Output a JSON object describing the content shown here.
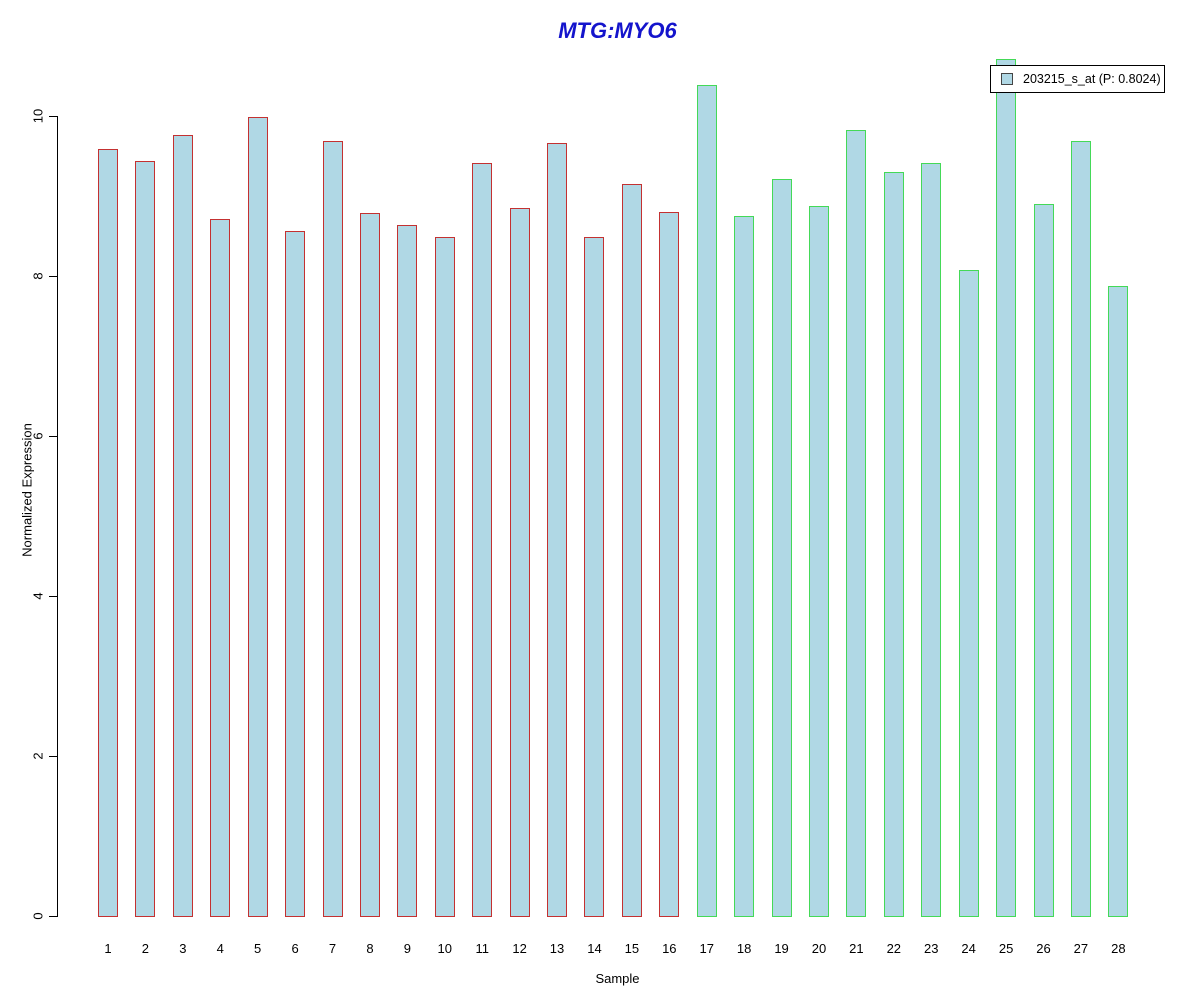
{
  "chart_data": {
    "type": "bar",
    "title": "MTG:MYO6",
    "xlabel": "Sample",
    "ylabel": "Normalized Expression",
    "categories": [
      "1",
      "2",
      "3",
      "4",
      "5",
      "6",
      "7",
      "8",
      "9",
      "10",
      "11",
      "12",
      "13",
      "14",
      "15",
      "16",
      "17",
      "18",
      "19",
      "20",
      "21",
      "22",
      "23",
      "24",
      "25",
      "26",
      "27",
      "28"
    ],
    "values": [
      9.6,
      9.45,
      9.78,
      8.72,
      10.0,
      8.58,
      9.7,
      8.8,
      8.65,
      8.5,
      9.42,
      8.86,
      9.68,
      8.5,
      9.16,
      8.81,
      10.4,
      8.76,
      9.23,
      8.89,
      9.84,
      9.31,
      9.43,
      8.09,
      10.72,
      8.91,
      9.7,
      7.89
    ],
    "ylim": [
      0,
      10
    ],
    "yticks": [
      0,
      2,
      4,
      6,
      8,
      10
    ],
    "legend_entries": [
      "203215_s_at (P: 0.8024)"
    ],
    "legend_position": "top-right",
    "grid": false,
    "colors": {
      "bar_fill": "#b0d8e5",
      "group1_border": "#c43131",
      "group2_border": "#44d957",
      "group1_bars": "1-16",
      "group2_bars": "17-28",
      "title_color": "#1414cc",
      "legend_swatch_fill": "#b0d8e5"
    }
  }
}
